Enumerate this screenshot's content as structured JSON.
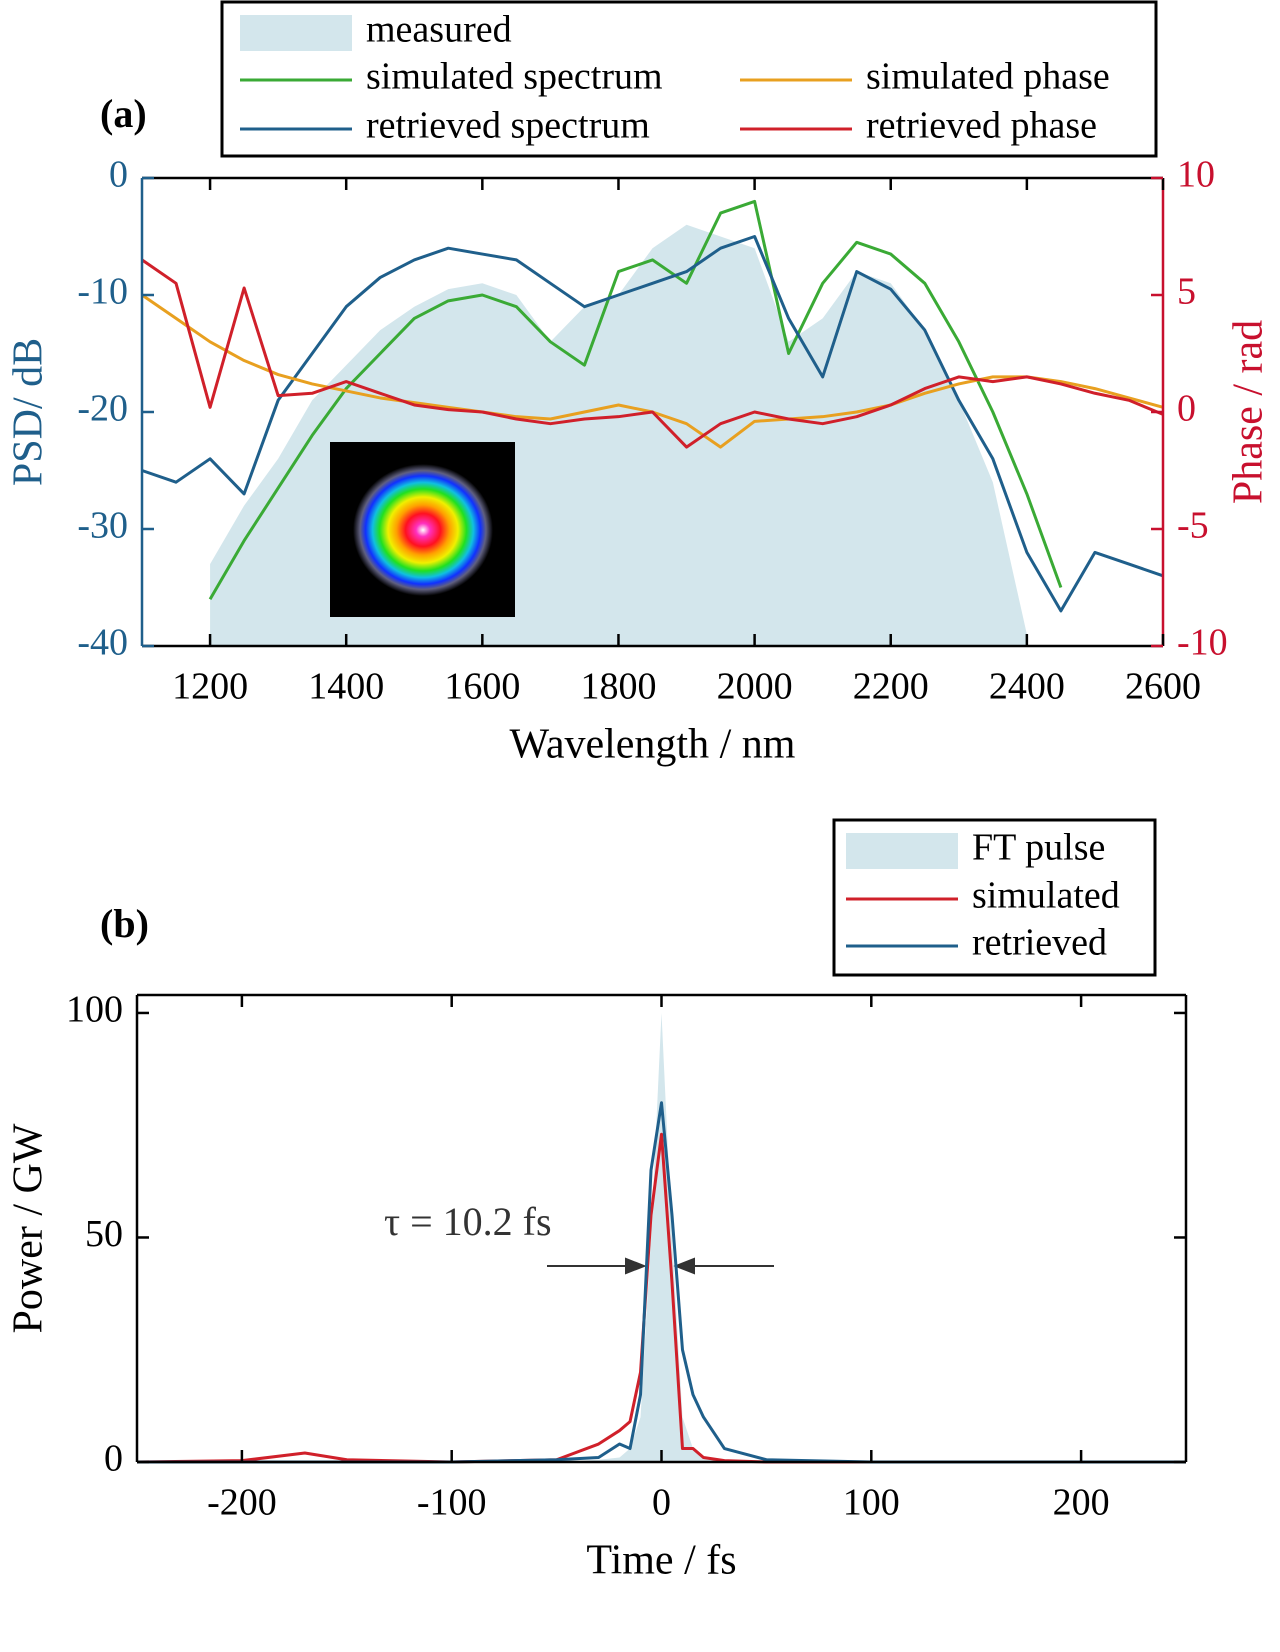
{
  "chart_data": [
    {
      "type": "line",
      "panel_label": "(a)",
      "xlabel": "Wavelength / nm",
      "ylabel": "PSD/ dB",
      "y2label": "Phase / rad",
      "ycolor": "#1f5f8b",
      "y2color": "#c8102e",
      "xlim": [
        1100,
        2600
      ],
      "xticks": [
        1200,
        1400,
        1600,
        1800,
        2000,
        2200,
        2400,
        2600
      ],
      "ylim": [
        -40,
        0
      ],
      "yticks": [
        0,
        -10,
        -20,
        -30,
        -40
      ],
      "y2lim": [
        -10,
        10
      ],
      "y2ticks": [
        10,
        5,
        0,
        -5,
        -10
      ],
      "x": [
        1100,
        1150,
        1200,
        1250,
        1300,
        1350,
        1400,
        1450,
        1500,
        1550,
        1600,
        1650,
        1700,
        1750,
        1800,
        1850,
        1900,
        1950,
        2000,
        2050,
        2100,
        2150,
        2200,
        2250,
        2300,
        2350,
        2400,
        2450,
        2500,
        2550,
        2600
      ],
      "series": [
        {
          "name": "measured",
          "style": "area",
          "color": "#d3e6ec",
          "values": [
            null,
            null,
            -33,
            -28,
            -24,
            -19,
            -16,
            -13,
            -11,
            -9.5,
            -9,
            -10,
            -14,
            -11,
            -10,
            -6,
            -4,
            -5,
            -6,
            -14,
            -12,
            -8,
            -9,
            -13,
            -19,
            -26,
            -39,
            null,
            null,
            null,
            null
          ]
        },
        {
          "name": "simulated spectrum",
          "color": "#3aaa35",
          "values": [
            null,
            null,
            -36,
            -31,
            -26.5,
            -22,
            -18,
            -15,
            -12,
            -10.5,
            -10,
            -11,
            -14,
            -16,
            -8,
            -7,
            -9,
            -3,
            -2,
            -15,
            -9,
            -5.5,
            -6.5,
            -9,
            -14,
            -20,
            -27,
            -35,
            null,
            null,
            null
          ]
        },
        {
          "name": "retrieved spectrum",
          "color": "#1f5f8b",
          "values": [
            -25,
            -26,
            -24,
            -27,
            -19,
            -15,
            -11,
            -8.5,
            -7,
            -6,
            -6.5,
            -7,
            -9,
            -11,
            -10,
            -9,
            -8,
            -6,
            -5,
            -12,
            -17,
            -8,
            -9.5,
            -13,
            -19,
            -24,
            -32,
            -37,
            -32,
            -33,
            -34
          ]
        },
        {
          "name": "simulated phase",
          "color": "#e8a020",
          "axis": "y2",
          "values": [
            5,
            4,
            3,
            2.2,
            1.6,
            1.2,
            0.9,
            0.6,
            0.4,
            0.2,
            0,
            -0.2,
            -0.3,
            0,
            0.3,
            0,
            -0.5,
            -1.5,
            -0.4,
            -0.3,
            -0.2,
            0,
            0.3,
            0.8,
            1.2,
            1.5,
            1.5,
            1.3,
            1,
            0.6,
            0.2
          ]
        },
        {
          "name": "retrieved phase",
          "color": "#d0202a",
          "axis": "y2",
          "values": [
            6.5,
            5.5,
            0.2,
            5.3,
            0.7,
            0.8,
            1.3,
            0.8,
            0.3,
            0.1,
            0,
            -0.3,
            -0.5,
            -0.3,
            -0.2,
            0,
            -1.5,
            -0.5,
            0,
            -0.3,
            -0.5,
            -0.2,
            0.3,
            1,
            1.5,
            1.3,
            1.5,
            1.2,
            0.8,
            0.5,
            -0.1
          ]
        }
      ]
    },
    {
      "type": "line",
      "panel_label": "(b)",
      "xlabel": "Time / fs",
      "ylabel": "Power / GW",
      "annotation": "τ = 10.2 fs",
      "xlim": [
        -250,
        250
      ],
      "xticks": [
        -200,
        -100,
        0,
        100,
        200
      ],
      "ylim": [
        0,
        104
      ],
      "yticks": [
        0,
        50,
        100
      ],
      "x": [
        -250,
        -200,
        -170,
        -150,
        -100,
        -50,
        -30,
        -20,
        -15,
        -10,
        -5,
        0,
        5,
        10,
        15,
        20,
        30,
        50,
        100,
        150,
        200,
        250
      ],
      "series": [
        {
          "name": "FT pulse",
          "style": "area",
          "color": "#d3e6ec",
          "values": [
            0,
            0,
            0,
            0,
            0,
            0,
            0.5,
            1,
            3,
            10,
            50,
            100,
            50,
            10,
            3,
            1,
            0.5,
            0,
            0,
            0,
            0,
            0
          ]
        },
        {
          "name": "simulated",
          "color": "#d0202a",
          "values": [
            0,
            0.3,
            2,
            0.5,
            0,
            0.5,
            4,
            7,
            9,
            20,
            55,
            73,
            40,
            3,
            3,
            1,
            0.3,
            0,
            0,
            0,
            0,
            0
          ]
        },
        {
          "name": "retrieved",
          "color": "#1f5f8b",
          "values": [
            0,
            0,
            0,
            0,
            0,
            0.5,
            1,
            4,
            3,
            15,
            65,
            80,
            55,
            25,
            15,
            10,
            3,
            0.5,
            0,
            0,
            0,
            0
          ]
        }
      ]
    }
  ]
}
